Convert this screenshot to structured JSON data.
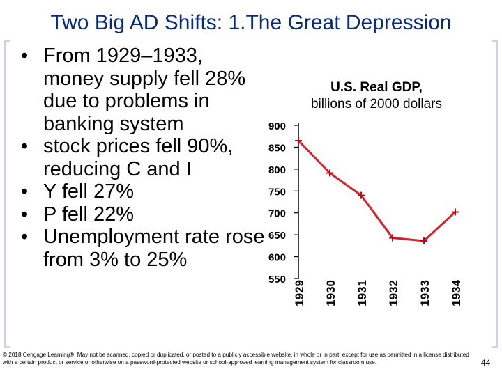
{
  "slide": {
    "title": "Two Big AD Shifts: 1.The Great Depression",
    "bullets": [
      {
        "text": "From 1929–1933, money supply fell 28% due to problems in banking system"
      },
      {
        "text": "stock prices fell 90%, reducing C and I"
      },
      {
        "text": "Y  fell 27%"
      },
      {
        "text": "P  fell 22%"
      },
      {
        "text": "Unemployment rate rose from 3% to 25%"
      }
    ],
    "bullet_symbol": "•",
    "footer": "© 2018 Cengage Learning®. May not be scanned, copied or duplicated, or posted to a publicly accessible website, in whole or in part, except for use as permitted in a license distributed with a certain product or service or otherwise on a password-protected website or school-approved learning management system for classroom use.",
    "page_number": "44",
    "colors": {
      "title": "#0a2a7a",
      "line": "#d81f2a",
      "bracket": "#cdd3e6"
    }
  },
  "chart_data": {
    "type": "line",
    "title": "U.S. Real GDP,",
    "subtitle": "billions of 2000 dollars",
    "categories": [
      "1929",
      "1930",
      "1931",
      "1932",
      "1933",
      "1934"
    ],
    "series": [
      {
        "name": "U.S. Real GDP",
        "values": [
          865,
          791,
          740,
          643,
          636,
          702
        ]
      }
    ],
    "yticks": [
      "900",
      "850",
      "800",
      "750",
      "700",
      "650",
      "600",
      "550"
    ],
    "ylim": [
      550,
      900
    ],
    "xlabel": "",
    "ylabel": ""
  }
}
